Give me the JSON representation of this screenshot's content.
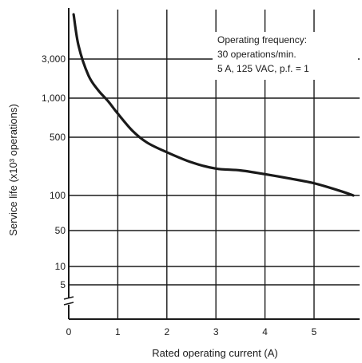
{
  "chart_data": {
    "type": "line",
    "title": "",
    "xlabel": "Rated operating current (A)",
    "ylabel": "Service life (x10³ operations)",
    "xlim": [
      0,
      5.8
    ],
    "x_ticks": [
      {
        "value": 0,
        "label": "0"
      },
      {
        "value": 1,
        "label": "1"
      },
      {
        "value": 2,
        "label": "2"
      },
      {
        "value": 3,
        "label": "3"
      },
      {
        "value": 4,
        "label": "4"
      },
      {
        "value": 5,
        "label": "5"
      }
    ],
    "y_ticks": [
      {
        "value": 5,
        "label": "5"
      },
      {
        "value": 10,
        "label": "10"
      },
      {
        "value": 50,
        "label": "50"
      },
      {
        "value": 100,
        "label": "100"
      },
      {
        "value": 500,
        "label": "500"
      },
      {
        "value": 1000,
        "label": "1,000"
      },
      {
        "value": 3000,
        "label": "3,000"
      }
    ],
    "y_scale": "log (broken axis below 5)",
    "grid": true,
    "annotation_lines": [
      "Operating frequency:",
      "30 operations/min.",
      "5 A, 125 VAC, p.f. = 1"
    ],
    "series": [
      {
        "x": [
          0.1,
          0.2,
          0.4,
          0.6,
          0.8,
          1.0,
          1.3,
          1.6,
          2.0,
          2.5,
          3.0,
          3.5,
          4.0,
          4.5,
          5.0,
          5.5,
          5.8
        ],
        "y": [
          10000,
          4300,
          1900,
          1250,
          950,
          760,
          560,
          430,
          330,
          250,
          210,
          200,
          180,
          160,
          140,
          115,
          100
        ]
      }
    ],
    "colors": {
      "line": "#1a1a1a",
      "grid": "#1a1a1a",
      "background": "#ffffff"
    }
  }
}
